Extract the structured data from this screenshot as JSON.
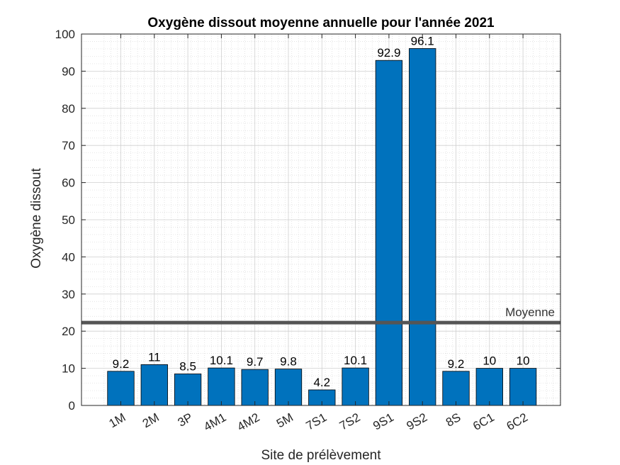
{
  "chart_data": {
    "type": "bar",
    "title": "Oxygène dissout moyenne annuelle pour l'année 2021",
    "xlabel": "Site de prélèvement",
    "ylabel": "Oxygène dissout",
    "categories": [
      "1M",
      "2M",
      "3P",
      "4M1",
      "4M2",
      "5M",
      "7S1",
      "7S2",
      "9S1",
      "9S2",
      "8S",
      "6C1",
      "6C2"
    ],
    "values": [
      9.2,
      11,
      8.5,
      10.1,
      9.7,
      9.8,
      4.2,
      10.1,
      92.9,
      96.1,
      9.2,
      10,
      10
    ],
    "data_labels": [
      "9.2",
      "11",
      "8.5",
      "10.1",
      "9.7",
      "9.8",
      "4.2",
      "10.1",
      "92.9",
      "96.1",
      "9.2",
      "10",
      "10"
    ],
    "ylim": [
      0,
      100
    ],
    "yticks": [
      0,
      10,
      20,
      30,
      40,
      50,
      60,
      70,
      80,
      90,
      100
    ],
    "grid": true,
    "minor_grid": true,
    "bar_color": "#0072BD",
    "reference_line": {
      "label": "Moyenne",
      "value": 22.3,
      "color": "#555555"
    }
  }
}
